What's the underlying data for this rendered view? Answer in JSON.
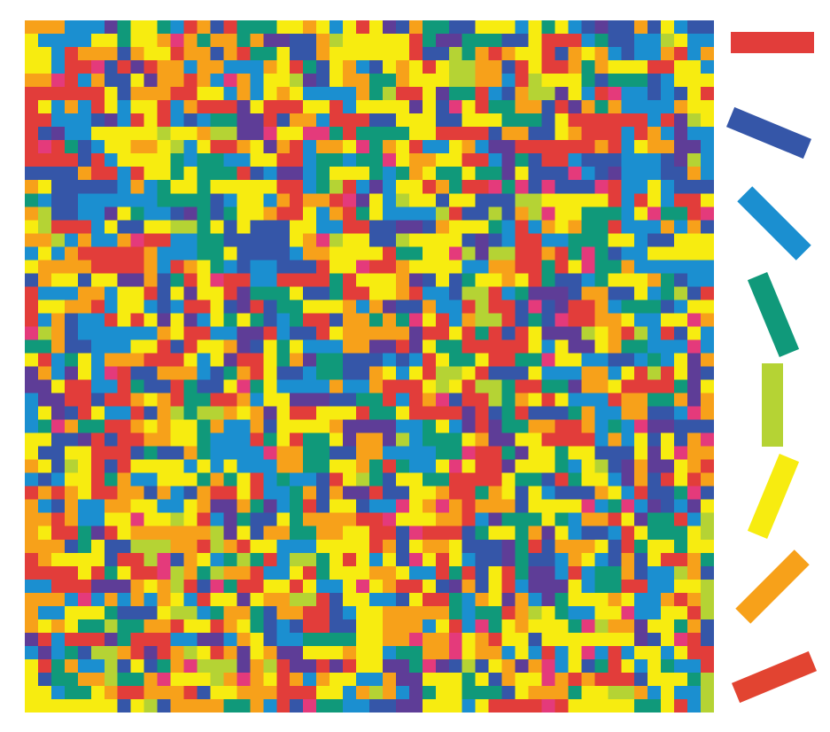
{
  "figure": {
    "grid": {
      "rows": 52,
      "cols": 52,
      "seed": 7,
      "palette_weights": [
        16,
        10,
        16,
        12,
        4,
        22,
        14,
        6
      ]
    },
    "orientation_key": [
      {
        "name": "red-0",
        "color": "#e23d3a",
        "angle_deg": 0
      },
      {
        "name": "blue-22",
        "color": "#3556a8",
        "angle_deg": -22.5
      },
      {
        "name": "azure-45",
        "color": "#1b8fd0",
        "angle_deg": -45
      },
      {
        "name": "green-67",
        "color": "#10997a",
        "angle_deg": -67.5
      },
      {
        "name": "lime-90",
        "color": "#b5d334",
        "angle_deg": 90
      },
      {
        "name": "yellow-112",
        "color": "#f7ec10",
        "angle_deg": 67.5
      },
      {
        "name": "orange-135",
        "color": "#f7a11a",
        "angle_deg": 45
      },
      {
        "name": "red-157",
        "color": "#e24431",
        "angle_deg": 22.5
      }
    ],
    "extra_colors": {
      "purple": "#5e3d97",
      "magenta": "#e43a7b"
    }
  }
}
